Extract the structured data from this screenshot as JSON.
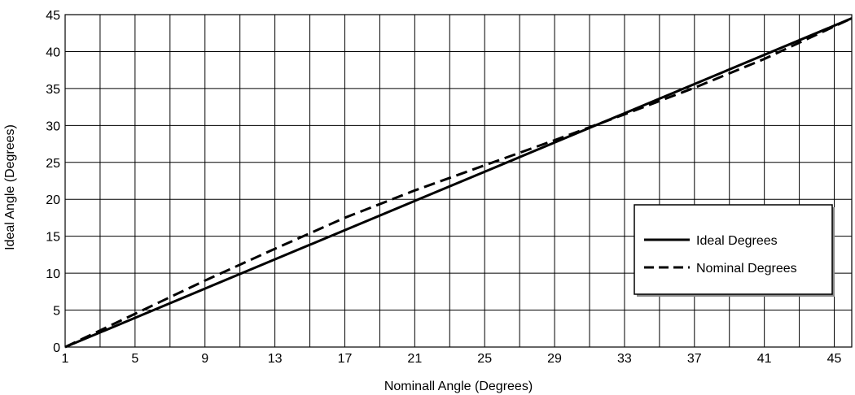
{
  "chart_data": {
    "type": "line",
    "title": "",
    "xlabel": "Nominall Angle (Degrees)",
    "ylabel": "Ideal Angle (Degrees)",
    "xlim": [
      1,
      46
    ],
    "ylim": [
      0,
      45
    ],
    "x_tick_labels": [
      1,
      5,
      9,
      13,
      17,
      21,
      25,
      29,
      33,
      37,
      41,
      45
    ],
    "y_tick_labels": [
      0,
      5,
      10,
      15,
      20,
      25,
      30,
      35,
      40,
      45
    ],
    "grid": true,
    "grid_x_step": 2,
    "grid_y_step": 5,
    "legend_position": "right",
    "series": [
      {
        "name": "Ideal Degrees",
        "style": "solid",
        "color": "#000000",
        "x": [
          1,
          46
        ],
        "y": [
          0,
          44.5
        ]
      },
      {
        "name": "Nominal Degrees",
        "style": "dashed",
        "color": "#000000",
        "x": [
          1,
          5,
          9,
          13,
          17,
          21,
          25,
          29,
          33,
          37,
          41,
          46
        ],
        "y": [
          0,
          4.5,
          9,
          13.3,
          17.5,
          21.2,
          24.6,
          28,
          31.5,
          35.1,
          39,
          44.5
        ]
      }
    ]
  }
}
